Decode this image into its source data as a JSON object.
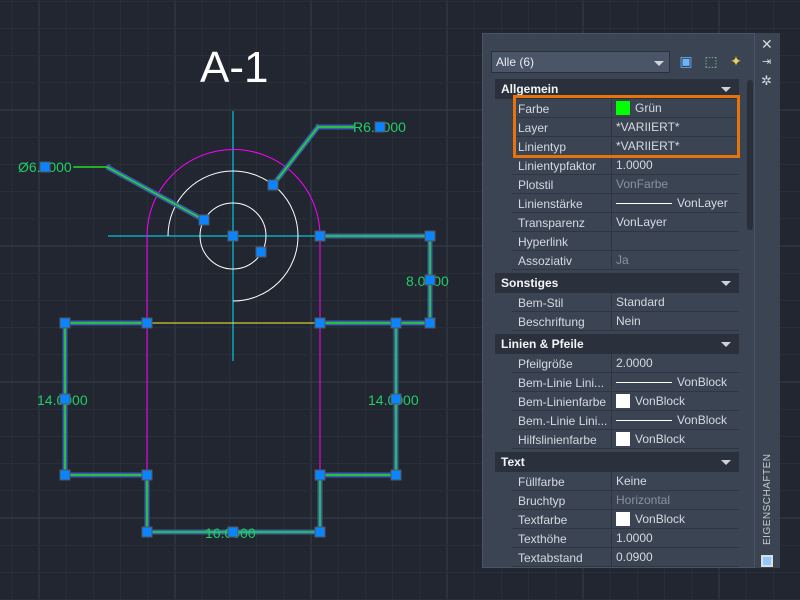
{
  "drawing": {
    "title": "A-1",
    "dims": {
      "dia": "Ø6.0000",
      "radius": "R6.0000",
      "right_v": "8.0000",
      "left_h": "14.0000",
      "right_h": "14.0000",
      "bottom": "16.0000"
    }
  },
  "colors": {
    "grip": "#0a84ff",
    "dim": "#22dd22",
    "arc": "#ff00ff",
    "center": "#00e5ff",
    "yellow": "#ffee33",
    "highlight": "#e8720c",
    "green_swatch": "#00ff00"
  },
  "panel": {
    "selection": "Alle (6)",
    "side_label": "EIGENSCHAFTEN",
    "sections": [
      {
        "title": "Allgemein",
        "rows": [
          {
            "k": "Farbe",
            "v": "Grün",
            "swatch": "#00ff00"
          },
          {
            "k": "Layer",
            "v": "*VARIIERT*"
          },
          {
            "k": "Linientyp",
            "v": "*VARIIERT*"
          },
          {
            "k": "Linientypfaktor",
            "v": "1.0000"
          },
          {
            "k": "Plotstil",
            "v": "VonFarbe",
            "dim": true
          },
          {
            "k": "Linienstärke",
            "v": "VonLayer",
            "line": true
          },
          {
            "k": "Transparenz",
            "v": "VonLayer"
          },
          {
            "k": "Hyperlink",
            "v": ""
          },
          {
            "k": "Assoziativ",
            "v": "Ja",
            "dim": true
          }
        ]
      },
      {
        "title": "Sonstiges",
        "rows": [
          {
            "k": "Bem-Stil",
            "v": "Standard"
          },
          {
            "k": "Beschriftung",
            "v": "Nein"
          }
        ]
      },
      {
        "title": "Linien & Pfeile",
        "rows": [
          {
            "k": "Pfeilgröße",
            "v": "2.0000"
          },
          {
            "k": "Bem-Linie Lini...",
            "v": "VonBlock",
            "line": true
          },
          {
            "k": "Bem-Linienfarbe",
            "v": "VonBlock",
            "swatch": "#ffffff"
          },
          {
            "k": "Bem.-Linie Lini...",
            "v": "VonBlock",
            "line": true
          },
          {
            "k": "Hilfslinienfarbe",
            "v": "VonBlock",
            "swatch": "#ffffff"
          }
        ]
      },
      {
        "title": "Text",
        "rows": [
          {
            "k": "Füllfarbe",
            "v": "Keine"
          },
          {
            "k": "Bruchtyp",
            "v": "Horizontal",
            "dim": true
          },
          {
            "k": "Textfarbe",
            "v": "VonBlock",
            "swatch": "#ffffff"
          },
          {
            "k": "Texthöhe",
            "v": "1.0000"
          },
          {
            "k": "Textabstand",
            "v": "0.0900"
          }
        ]
      }
    ]
  }
}
